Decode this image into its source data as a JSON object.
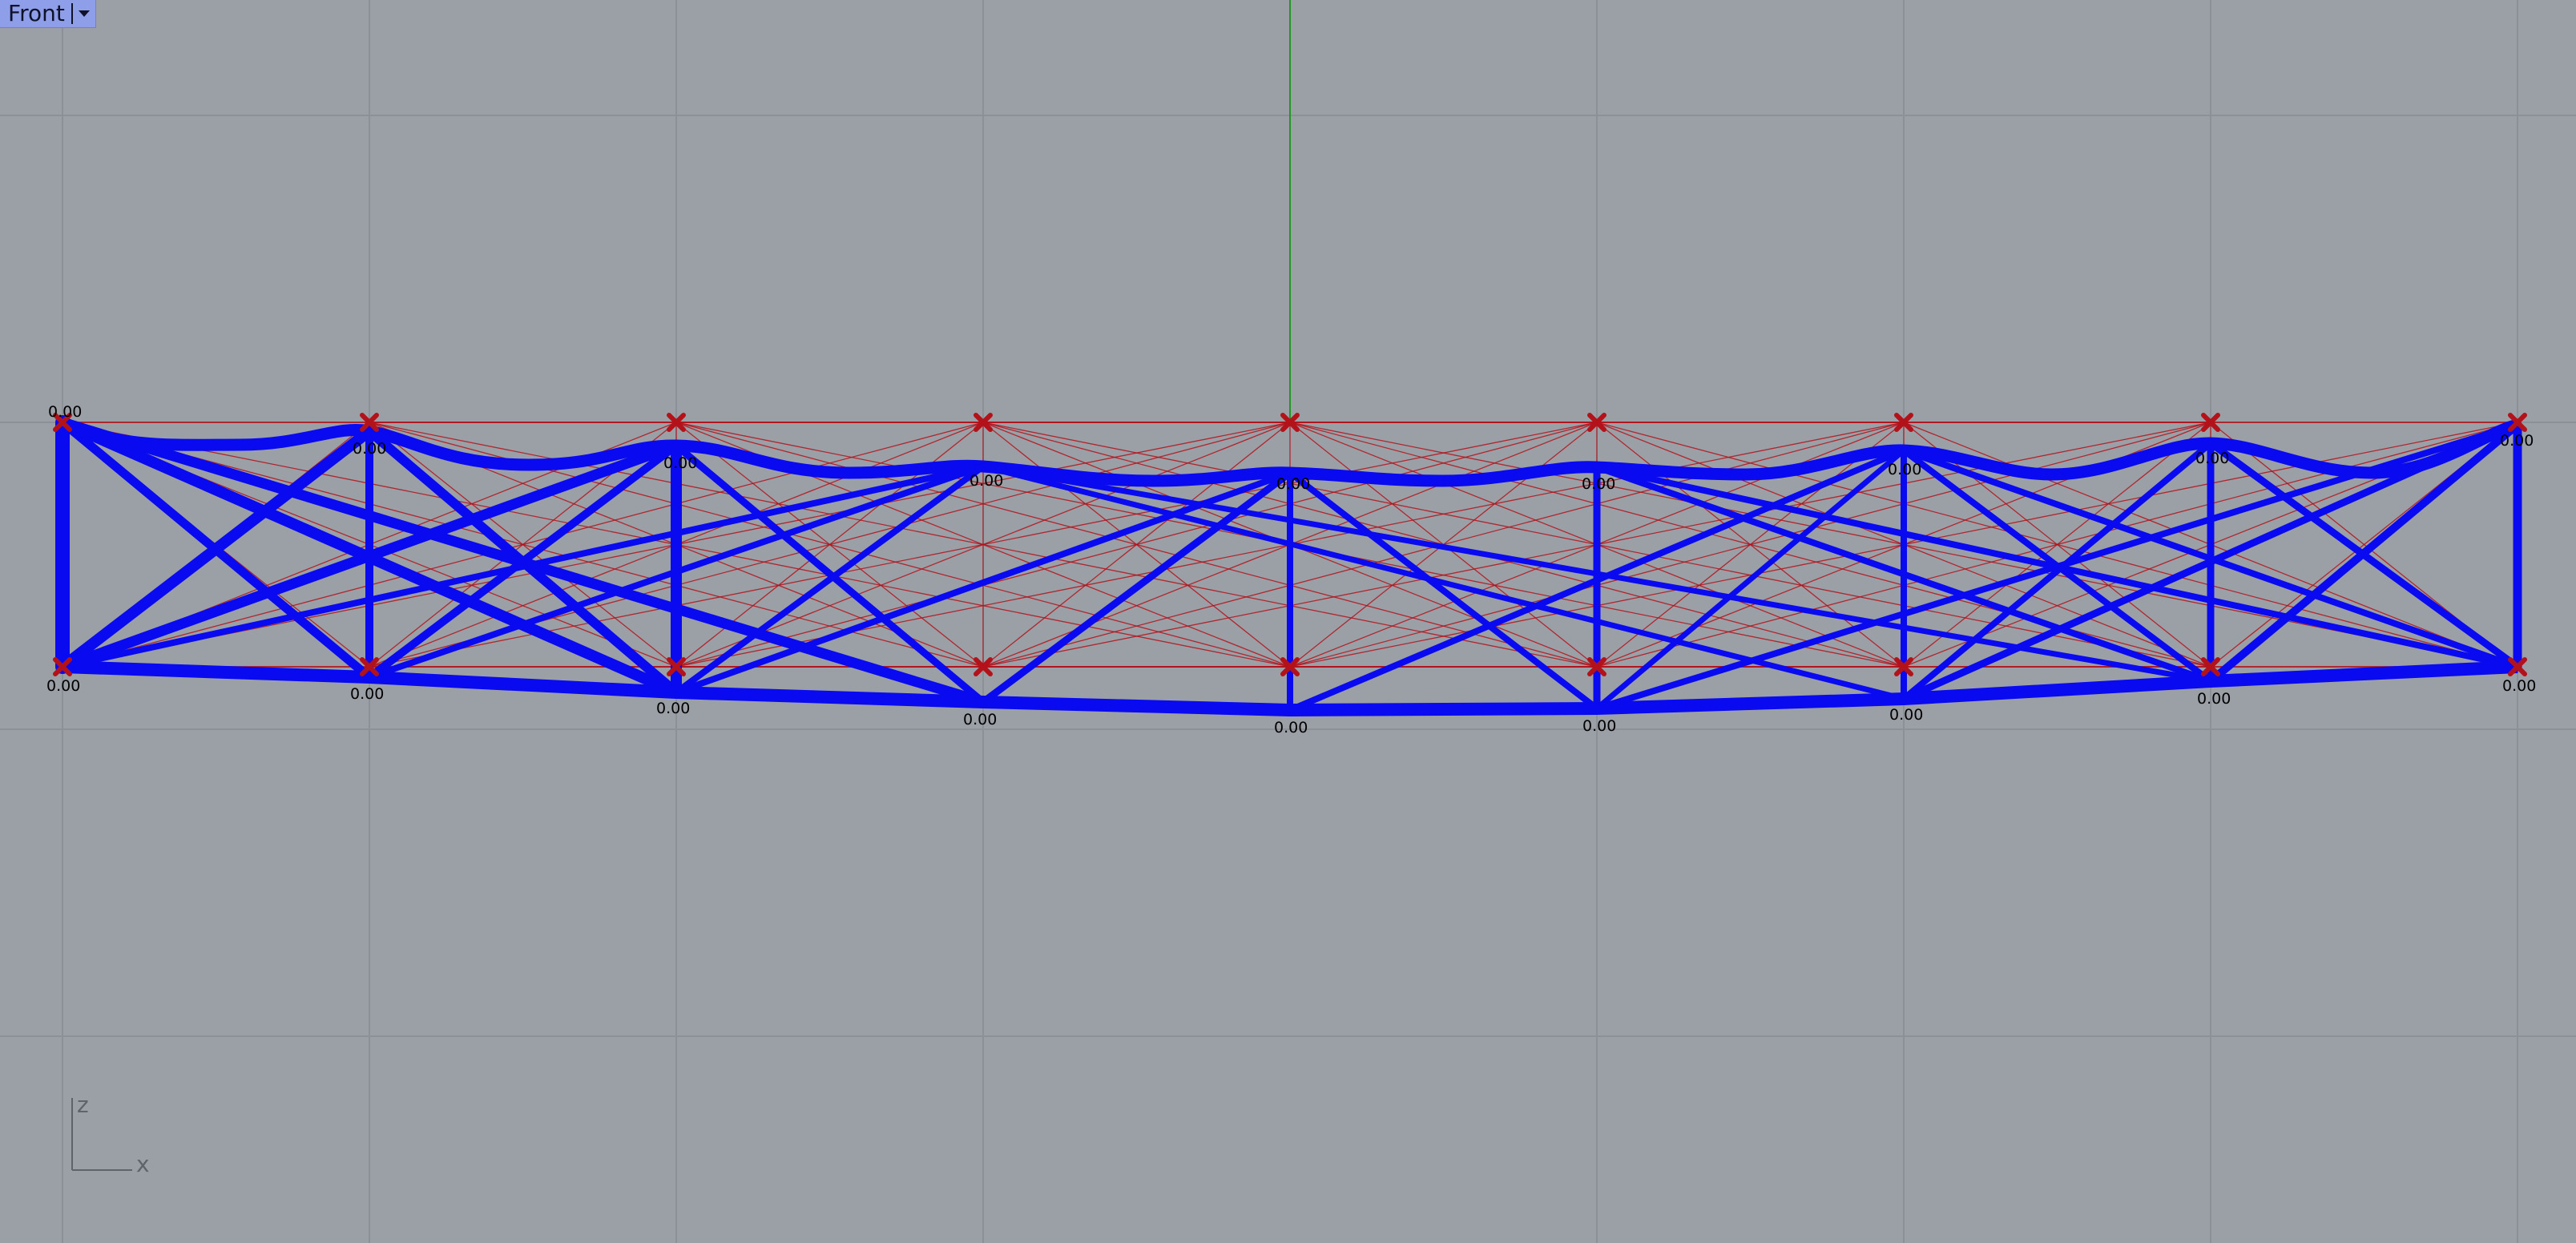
{
  "viewport": {
    "name": "Front",
    "background": "#9ba0a7",
    "grid_color": "#8c9198",
    "y_axis_color": "#1f9a1f"
  },
  "axis_indicator": {
    "vertical": "z",
    "horizontal": "x"
  },
  "colors": {
    "member": "#0a0af0",
    "ground_structure": "#b3121a",
    "support_marker": "#b3121a"
  },
  "top_chord_supports": [
    "0.00",
    "0.00",
    "0.00",
    "0.00",
    "0.00",
    "0.00",
    "0.00",
    "0.00",
    "0.00"
  ],
  "bottom_chord_supports": [
    "0.00",
    "0.00",
    "0.00",
    "0.00",
    "0.00",
    "0.00",
    "0.00",
    "0.00",
    "0.00"
  ],
  "icons": {
    "dropdown": "chevron-down-icon",
    "support": "x-mark-icon"
  }
}
